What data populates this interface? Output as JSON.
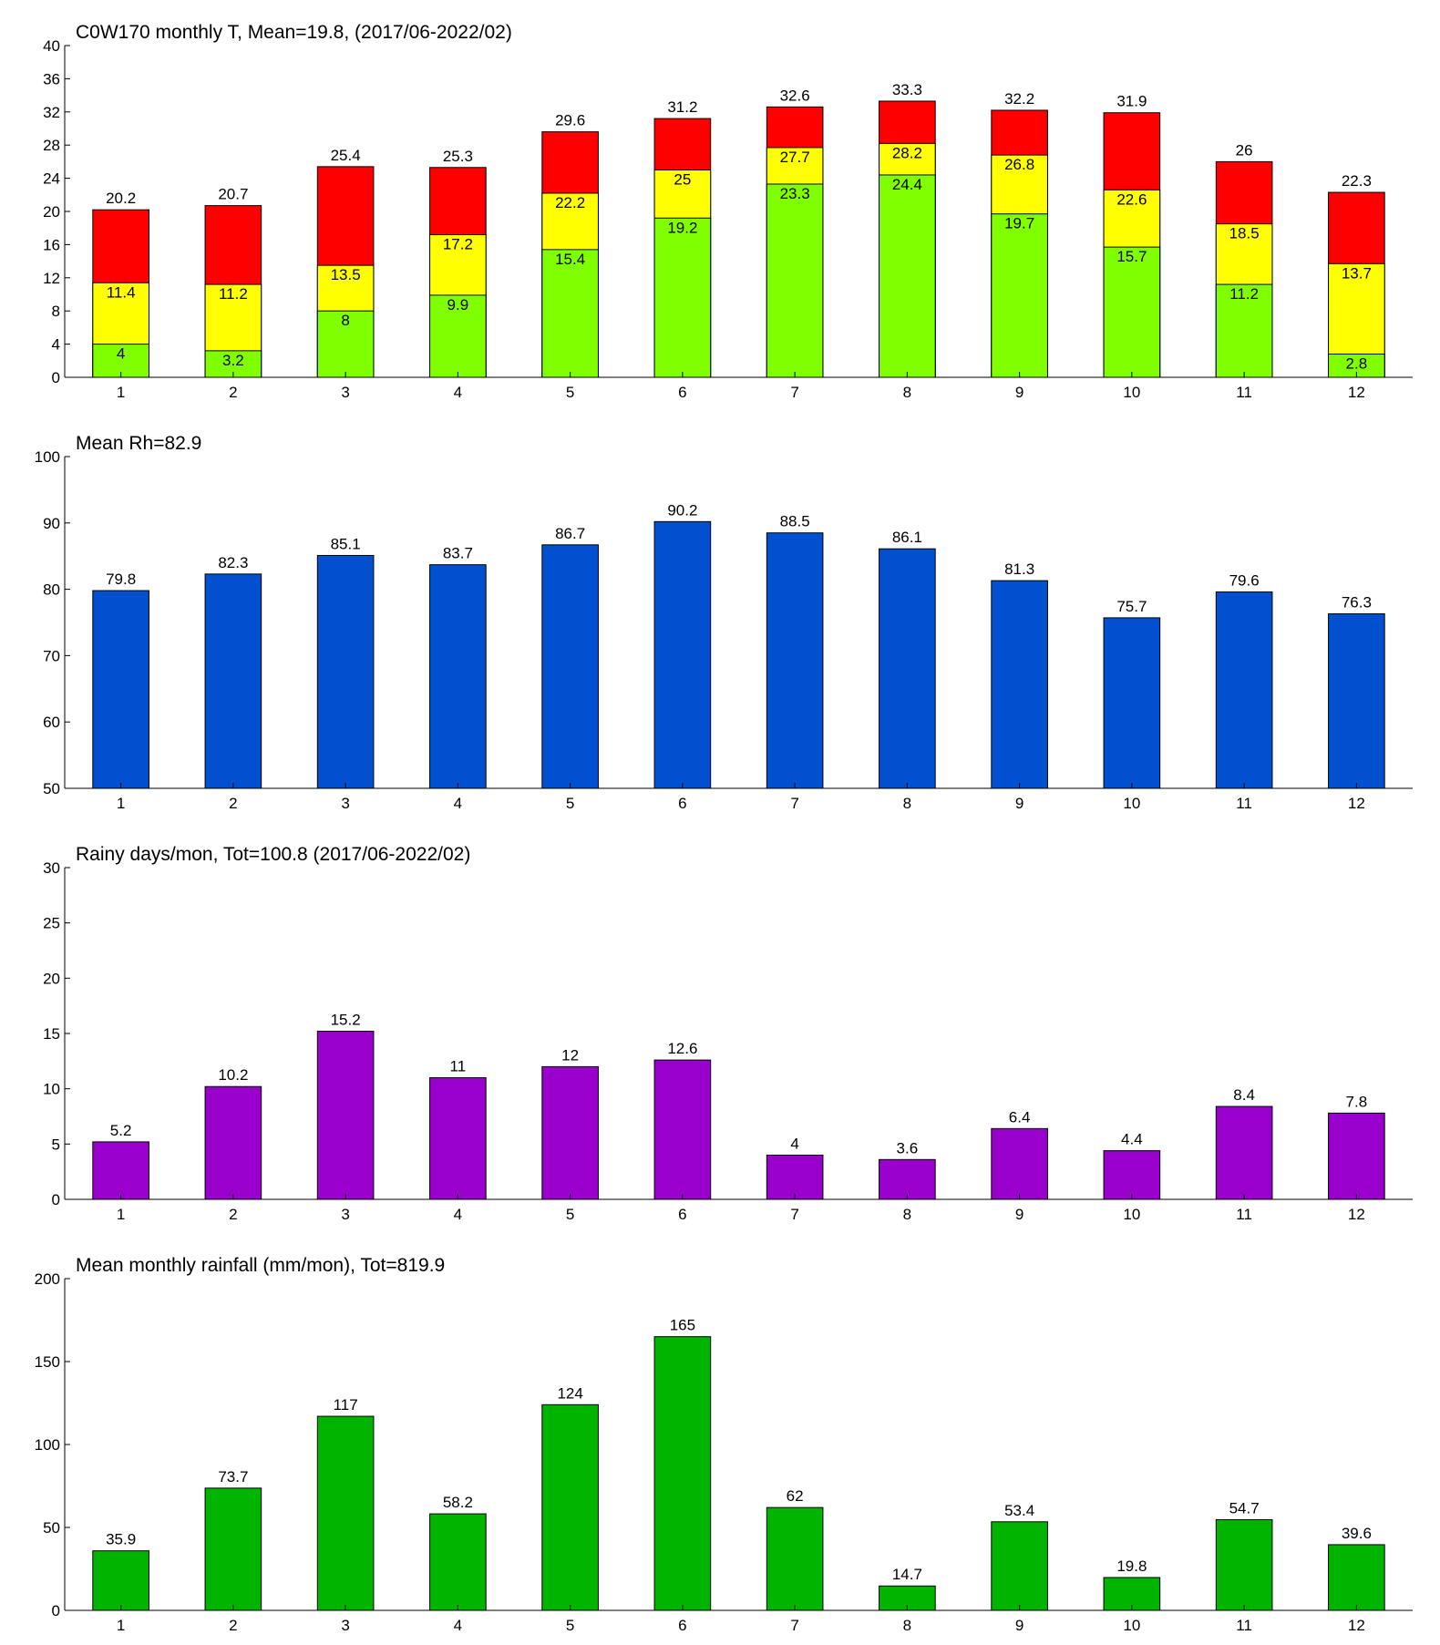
{
  "chart_data": [
    {
      "type": "bar",
      "title": "C0W170 monthly T, Mean=19.8, (2017/06-2022/02)",
      "categories": [
        "1",
        "2",
        "3",
        "4",
        "5",
        "6",
        "7",
        "8",
        "9",
        "10",
        "11",
        "12"
      ],
      "series": [
        {
          "color": "#ff0000",
          "values": [
            20.2,
            20.7,
            25.4,
            25.3,
            29.6,
            31.2,
            32.6,
            33.3,
            32.2,
            31.9,
            26,
            22.3
          ]
        },
        {
          "color": "#ffff00",
          "values": [
            11.4,
            11.2,
            13.5,
            17.2,
            22.2,
            25,
            27.7,
            28.2,
            26.8,
            22.6,
            18.5,
            13.7
          ]
        },
        {
          "color": "#80ff00",
          "values": [
            4,
            3.2,
            8,
            9.9,
            15.4,
            19.2,
            23.3,
            24.4,
            19.7,
            15.7,
            11.2,
            2.8
          ]
        }
      ],
      "ylim": [
        0,
        40
      ],
      "yticks": [
        0,
        4,
        8,
        12,
        16,
        20,
        24,
        28,
        32,
        36,
        40
      ]
    },
    {
      "type": "bar",
      "title": "Mean Rh=82.9",
      "categories": [
        "1",
        "2",
        "3",
        "4",
        "5",
        "6",
        "7",
        "8",
        "9",
        "10",
        "11",
        "12"
      ],
      "series": [
        {
          "color": "#0050d0",
          "values": [
            79.8,
            82.3,
            85.1,
            83.7,
            86.7,
            90.2,
            88.5,
            86.1,
            81.3,
            75.7,
            79.6,
            76.3
          ]
        }
      ],
      "ylim": [
        50,
        100
      ],
      "yticks": [
        50,
        60,
        70,
        80,
        90,
        100
      ]
    },
    {
      "type": "bar",
      "title": "Rainy days/mon, Tot=100.8 (2017/06-2022/02)",
      "categories": [
        "1",
        "2",
        "3",
        "4",
        "5",
        "6",
        "7",
        "8",
        "9",
        "10",
        "11",
        "12"
      ],
      "series": [
        {
          "color": "#9900cc",
          "values": [
            5.2,
            10.2,
            15.2,
            11,
            12,
            12.6,
            4,
            3.6,
            6.4,
            4.4,
            8.4,
            7.8
          ]
        }
      ],
      "ylim": [
        0,
        30
      ],
      "yticks": [
        0,
        5,
        10,
        15,
        20,
        25,
        30
      ]
    },
    {
      "type": "bar",
      "title": "Mean monthly rainfall (mm/mon), Tot=819.9",
      "categories": [
        "1",
        "2",
        "3",
        "4",
        "5",
        "6",
        "7",
        "8",
        "9",
        "10",
        "11",
        "12"
      ],
      "series": [
        {
          "color": "#00b400",
          "values": [
            35.9,
            73.7,
            117,
            58.2,
            124,
            165,
            62,
            14.7,
            53.4,
            19.8,
            54.7,
            39.6
          ]
        }
      ],
      "ylim": [
        0,
        200
      ],
      "yticks": [
        0,
        50,
        100,
        150,
        200
      ]
    }
  ]
}
